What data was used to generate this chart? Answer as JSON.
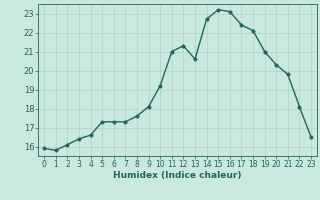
{
  "x": [
    0,
    1,
    2,
    3,
    4,
    5,
    6,
    7,
    8,
    9,
    10,
    11,
    12,
    13,
    14,
    15,
    16,
    17,
    18,
    19,
    20,
    21,
    22,
    23
  ],
  "y": [
    15.9,
    15.8,
    16.1,
    16.4,
    16.6,
    17.3,
    17.3,
    17.3,
    17.6,
    18.1,
    19.2,
    21.0,
    21.3,
    20.6,
    22.7,
    23.2,
    23.1,
    22.4,
    22.1,
    21.0,
    20.3,
    19.8,
    18.1,
    16.5
  ],
  "xlabel": "Humidex (Indice chaleur)",
  "xlim": [
    -0.5,
    23.5
  ],
  "ylim": [
    15.5,
    23.5
  ],
  "yticks": [
    16,
    17,
    18,
    19,
    20,
    21,
    22,
    23
  ],
  "xticks": [
    0,
    1,
    2,
    3,
    4,
    5,
    6,
    7,
    8,
    9,
    10,
    11,
    12,
    13,
    14,
    15,
    16,
    17,
    18,
    19,
    20,
    21,
    22,
    23
  ],
  "bg_color": "#c8e8e0",
  "grid_color": "#b0d0c8",
  "line_color": "#226655",
  "marker_color": "#226655",
  "text_color": "#226655",
  "line_width": 1.0,
  "marker_size": 2.5
}
